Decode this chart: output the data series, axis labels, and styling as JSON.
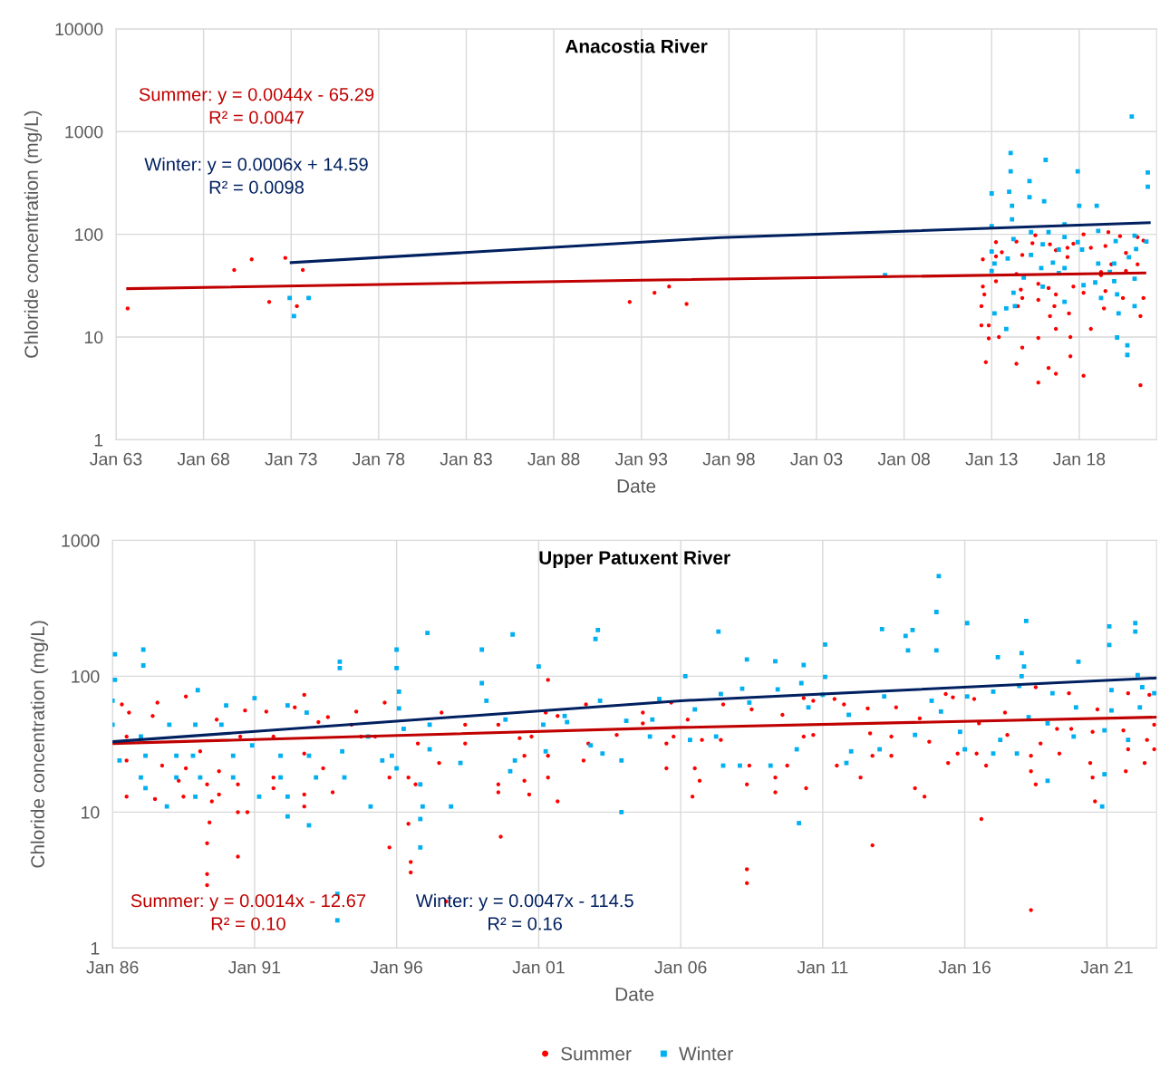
{
  "chart_data": [
    {
      "type": "scatter",
      "title": "Anacostia River",
      "xlabel": "Date",
      "ylabel": "Chloride concentration (mg/L)",
      "log": "y",
      "grid": true,
      "xlim": [
        "1963-01",
        "2022-06"
      ],
      "xticks": [
        {
          "value": "1963-01",
          "label": "Jan 63"
        },
        {
          "value": "1968-01",
          "label": "Jan 68"
        },
        {
          "value": "1973-01",
          "label": "Jan 73"
        },
        {
          "value": "1978-01",
          "label": "Jan 78"
        },
        {
          "value": "1983-01",
          "label": "Jan 83"
        },
        {
          "value": "1988-01",
          "label": "Jan 88"
        },
        {
          "value": "1993-01",
          "label": "Jan 93"
        },
        {
          "value": "1998-01",
          "label": "Jan 98"
        },
        {
          "value": "2003-01",
          "label": "Jan 03"
        },
        {
          "value": "2008-01",
          "label": "Jan 08"
        },
        {
          "value": "2013-01",
          "label": "Jan 13"
        },
        {
          "value": "2018-01",
          "label": "Jan 18"
        }
      ],
      "ylim": [
        1,
        10000
      ],
      "yticks": [
        1,
        10,
        100,
        1000,
        10000
      ],
      "annotations": [
        "Summer: y = 0.0044x - 65.29\nR² = 0.0047",
        "Winter: y = 0.0006x + 14.59\nR² = 0.0098"
      ],
      "series": [
        {
          "marker": "circle",
          "color": "#ff0000",
          "x": [
            "1963-09",
            "1969-10",
            "1970-10",
            "1971-10",
            "1972-09",
            "1973-05",
            "1973-09",
            "1992-05",
            "1993-10",
            "1994-08",
            "1995-08",
            "2013-04",
            "2012-07",
            "2013-04",
            "2013-08",
            "2014-06",
            "2014-10",
            "2015-05",
            "2015-07",
            "2016-05",
            "2016-09",
            "2017-05",
            "2017-09",
            "2018-04",
            "2018-09",
            "2019-07",
            "2019-09",
            "2020-05",
            "2020-09",
            "2021-05",
            "2021-05",
            "2021-09",
            "2013-04",
            "2014-06",
            "2014-09",
            "2014-10",
            "2014-07",
            "2015-09",
            "2016-04",
            "2016-09",
            "2017-09",
            "2018-04",
            "2019-04",
            "2019-07",
            "2020-09",
            "2020-07",
            "2021-09",
            "2012-07",
            "2012-08",
            "2012-06",
            "2012-06",
            "2012-11",
            "2013-06",
            "2012-11",
            "2015-09",
            "2016-08",
            "2016-05",
            "2017-06",
            "2016-09",
            "2017-07",
            "2018-09",
            "2019-06",
            "2021-07",
            "2014-10",
            "2012-09",
            "2014-06",
            "2015-09",
            "2017-07",
            "2016-04",
            "2016-09",
            "2018-04",
            "2015-09",
            "2021-07",
            "2019-11",
            "2019-04",
            "2017-05"
          ],
          "values": [
            19,
            45,
            57,
            22,
            59,
            20,
            45,
            22,
            27,
            31,
            21,
            84,
            57,
            61,
            67,
            85,
            63,
            82,
            98,
            80,
            70,
            74,
            81,
            100,
            74,
            77,
            105,
            96,
            66,
            94,
            51,
            87,
            35,
            41,
            29,
            24,
            20,
            33,
            30,
            26,
            31,
            27,
            40,
            28,
            44,
            24,
            24,
            31,
            26,
            20,
            13,
            13,
            10,
            9.7,
            23,
            20,
            16,
            17,
            12,
            10,
            12,
            19,
            16,
            7.9,
            5.7,
            5.5,
            9.8,
            6.5,
            5.0,
            4.4,
            4.2,
            3.6,
            3.4,
            51,
            43,
            60
          ]
        },
        {
          "marker": "square",
          "color": "#00b0f0",
          "x": [
            "1972-12",
            "1973-03",
            "1974-01",
            "2006-12",
            "2021-01",
            "2014-02",
            "2014-02",
            "2016-02",
            "2015-03",
            "2014-01",
            "2013-01",
            "2014-03",
            "2015-03",
            "2016-01",
            "2017-12",
            "2018-01",
            "2019-01",
            "2021-12",
            "2021-12",
            "2013-01",
            "2014-03",
            "2015-04",
            "2017-03",
            "2019-02",
            "2014-04",
            "2016-04",
            "2017-03",
            "2015-12",
            "2016-11",
            "2017-12",
            "2018-03",
            "2020-02",
            "2021-03",
            "2021-04",
            "2021-11",
            "2013-01",
            "2013-03",
            "2013-01",
            "2013-12",
            "2015-04",
            "2016-07",
            "2017-03",
            "2019-02",
            "2020-01",
            "2020-11",
            "2014-11",
            "2015-11",
            "2016-11",
            "2019-10",
            "2021-03",
            "2014-04",
            "2014-05",
            "2015-12",
            "2017-03",
            "2018-04",
            "2018-12",
            "2019-04",
            "2020-01",
            "2020-03",
            "2020-04",
            "2021-03",
            "2013-11",
            "2013-03",
            "2013-11",
            "2020-03",
            "2020-10",
            "2020-10"
          ],
          "values": [
            24,
            16,
            24,
            40,
            1400,
            620,
            410,
            530,
            330,
            260,
            250,
            190,
            230,
            210,
            410,
            190,
            190,
            400,
            290,
            120,
            140,
            105,
            125,
            108,
            90,
            105,
            94,
            80,
            71,
            84,
            71,
            86,
            97,
            72,
            85,
            68,
            52,
            44,
            58,
            63,
            53,
            47,
            52,
            52,
            60,
            38,
            47,
            42,
            43,
            37,
            27,
            20,
            31,
            22,
            32,
            34,
            24,
            35,
            26,
            17,
            20,
            19,
            17,
            12,
            9.9,
            8.3,
            6.7
          ]
        },
        {
          "type": "line",
          "color": "#c00000",
          "x": [
            "1963-09",
            "1993-01",
            "2021-10"
          ],
          "values": [
            29.6,
            35.8,
            42
          ]
        },
        {
          "type": "line",
          "color": "#002060",
          "x": [
            "1973-01",
            "1997-07",
            "2022-01"
          ],
          "values": [
            53,
            93,
            130
          ]
        }
      ]
    },
    {
      "type": "scatter",
      "title": "Upper Patuxent River",
      "xlabel": "Date",
      "ylabel": "Chloride concentration (mg/L)",
      "log": "y",
      "grid": true,
      "legend": "bottom",
      "xlim": [
        "1986-01",
        "2022-10"
      ],
      "xticks": [
        {
          "value": "1986-01",
          "label": "Jan 86"
        },
        {
          "value": "1991-01",
          "label": "Jan 91"
        },
        {
          "value": "1996-01",
          "label": "Jan 96"
        },
        {
          "value": "2001-01",
          "label": "Jan 01"
        },
        {
          "value": "2006-01",
          "label": "Jan 06"
        },
        {
          "value": "2011-01",
          "label": "Jan 11"
        },
        {
          "value": "2016-01",
          "label": "Jan 16"
        },
        {
          "value": "2021-01",
          "label": "Jan 21"
        }
      ],
      "ylim": [
        1,
        1000
      ],
      "yticks": [
        1,
        10,
        100,
        1000
      ],
      "annotations": [
        "Summer: y = 0.0014x - 12.67\nR² = 0.10",
        "Winter: y = 0.0047x - 114.5\nR² = 0.16"
      ],
      "series": [
        {
          "name": "Summer",
          "marker": "circle",
          "color": "#ff0000",
          "x": [
            "1986-05",
            "1986-08",
            "1986-07",
            "1986-07",
            "1986-07",
            "1987-06",
            "1987-07",
            "1987-08",
            "1987-10",
            "1988-05",
            "1988-07",
            "1988-08",
            "1988-08",
            "1989-02",
            "1989-05",
            "1989-05",
            "1989-05",
            "1989-05",
            "1989-07",
            "1989-06",
            "1989-10",
            "1989-10",
            "1989-09",
            "1990-06",
            "1990-06",
            "1990-06",
            "1990-07",
            "1990-09",
            "1990-10",
            "1991-06",
            "1991-09",
            "1991-09",
            "1991-09",
            "1992-10",
            "1992-06",
            "1992-10",
            "1992-10",
            "1992-10",
            "1993-04",
            "1993-06",
            "1993-10",
            "1993-08",
            "1994-06",
            "1994-08",
            "1994-10",
            "1995-04",
            "1995-08",
            "1995-10",
            "1995-10",
            "1996-06",
            "1996-06",
            "1996-07",
            "1996-07",
            "1996-09",
            "1996-10",
            "1997-08",
            "1997-07",
            "1997-10",
            "1998-06",
            "1998-06",
            "2001-05",
            "1999-08",
            "1999-08",
            "1999-08",
            "1999-09",
            "2000-07",
            "2000-07",
            "2000-09",
            "2000-10",
            "2000-05",
            "2001-05",
            "2001-05",
            "2001-04",
            "2001-09",
            "2001-09",
            "2002-08",
            "2002-09",
            "2002-10",
            "2003-10",
            "2004-09",
            "2004-09",
            "2005-07",
            "2005-07",
            "2005-09",
            "2005-10",
            "2006-04",
            "2006-07",
            "2006-06",
            "2006-09",
            "2006-10",
            "2007-07",
            "2007-06",
            "2008-05",
            "2008-05",
            "2008-05",
            "2008-06",
            "2008-07",
            "2009-05",
            "2009-05",
            "2009-08",
            "2009-10",
            "2010-05",
            "2010-06",
            "2010-05",
            "2010-09",
            "2010-09",
            "2011-06",
            "2011-07",
            "2011-10",
            "2012-05",
            "2012-08",
            "2012-09",
            "2012-10",
            "2012-10",
            "2013-06",
            "2013-06",
            "2013-08",
            "2014-04",
            "2014-08",
            "2014-06",
            "2014-10",
            "2015-05",
            "2015-06",
            "2015-10",
            "2015-08",
            "2016-06",
            "2016-08",
            "2016-10",
            "2016-07",
            "2016-05",
            "2017-07",
            "2017-06",
            "2018-05",
            "2018-05",
            "2018-07",
            "2018-05",
            "2018-07",
            "2018-09",
            "2019-05",
            "2019-04",
            "2019-09",
            "2019-10",
            "2020-06",
            "2020-07",
            "2020-08",
            "2020-07",
            "2020-09",
            "2021-08",
            "2021-09",
            "2021-10",
            "2021-10",
            "2022-05",
            "2022-06",
            "2022-07",
            "2022-09",
            "2022-09"
          ],
          "values": [
            62,
            54,
            36,
            24,
            13,
            51,
            12.5,
            64,
            22,
            17,
            13,
            71,
            21,
            28,
            16,
            5.9,
            3.5,
            2.9,
            12,
            8.4,
            13.5,
            20,
            48,
            4.7,
            10,
            16,
            36,
            56,
            10,
            55,
            36,
            18,
            15,
            73,
            59,
            27,
            13.5,
            11,
            46,
            21,
            14,
            50,
            44,
            55,
            36,
            36,
            64,
            18,
            5.5,
            18,
            8.2,
            4.3,
            3.6,
            16,
            32,
            54,
            23,
            2.2,
            44,
            32,
            94,
            44,
            16,
            14,
            6.6,
            26,
            17,
            13.5,
            36,
            35,
            26,
            18,
            54,
            12,
            51,
            24,
            62,
            32,
            37,
            54,
            45,
            32,
            21,
            64,
            36,
            48,
            21,
            13,
            17,
            34,
            62,
            34,
            3.8,
            3.0,
            16,
            22,
            57,
            14,
            18,
            52,
            22,
            69,
            15,
            36,
            66,
            37,
            68,
            22,
            62,
            18,
            58,
            38,
            26,
            5.7,
            26,
            36,
            59,
            15,
            13,
            49,
            33,
            74,
            23,
            27,
            70,
            27,
            8.9,
            22,
            45,
            68,
            37,
            54,
            26,
            20,
            16,
            1.9,
            83,
            32,
            27,
            41,
            75,
            41,
            23,
            18,
            12,
            39,
            57,
            40,
            20,
            75,
            29,
            23,
            34,
            73,
            29,
            44
          ]
        },
        {
          "name": "Winter",
          "marker": "square",
          "color": "#00b0f0",
          "x": [
            "1986-02",
            "1986-02",
            "1986-01",
            "1986-01",
            "1986-04",
            "1987-02",
            "1987-02",
            "1987-01",
            "1987-01",
            "1987-03",
            "1987-03",
            "1987-12",
            "1988-01",
            "1988-04",
            "1988-04",
            "1989-01",
            "1988-12",
            "1988-11",
            "1988-12",
            "1989-02",
            "1990-01",
            "1989-11",
            "1990-04",
            "1990-04",
            "1991-01",
            "1990-12",
            "1991-03",
            "1991-12",
            "1991-12",
            "1992-03",
            "1992-03",
            "1992-03",
            "1992-11",
            "1992-12",
            "1992-12",
            "1993-03",
            "1994-01",
            "1994-01",
            "1993-12",
            "1993-12",
            "1994-02",
            "1994-03",
            "1995-01",
            "1995-02",
            "1995-07",
            "1995-11",
            "1996-01",
            "1996-01",
            "1996-02",
            "1996-02",
            "1996-04",
            "1996-01",
            "1996-11",
            "1996-12",
            "1996-11",
            "1996-11",
            "1997-02",
            "1997-03",
            "1997-03",
            "1997-12",
            "1998-04",
            "1999-01",
            "1999-01",
            "1999-03",
            "2000-02",
            "2000-03",
            "2000-01",
            "1999-11",
            "2001-01",
            "2001-03",
            "2001-04",
            "2001-12",
            "2002-01",
            "2002-11",
            "2003-02",
            "2003-01",
            "2003-03",
            "2003-04",
            "2003-12",
            "2003-12",
            "2004-02",
            "2004-12",
            "2005-04",
            "2005-01",
            "2006-03",
            "2006-05",
            "2006-07",
            "2007-04",
            "2007-05",
            "2007-07",
            "2007-06",
            "2008-03",
            "2008-05",
            "2008-02",
            "2008-06",
            "2009-03",
            "2009-05",
            "2009-06",
            "2010-02",
            "2010-03",
            "2010-05",
            "2010-04",
            "2010-07",
            "2011-02",
            "2011-02",
            "2011-01",
            "2011-11",
            "2012-01",
            "2011-12",
            "2013-02",
            "2013-12",
            "2014-03",
            "2014-01",
            "2013-03",
            "2013-01",
            "2014-04",
            "2015-02",
            "2015-01",
            "2015-01",
            "2014-11",
            "2015-03",
            "2016-02",
            "2015-11",
            "2016-01",
            "2016-02",
            "2017-01",
            "2017-03",
            "2017-04",
            "2017-01",
            "2017-11",
            "2018-03",
            "2018-01",
            "2018-02",
            "2018-01",
            "2017-12",
            "2018-04",
            "2018-12",
            "2018-12",
            "2019-02",
            "2020-01",
            "2019-12",
            "2019-11",
            "2020-12",
            "2020-11",
            "2021-02",
            "2021-02",
            "2021-03",
            "2021-03",
            "2020-12",
            "2021-10",
            "2022-01",
            "2022-01",
            "2022-02",
            "2022-04",
            "2022-03",
            "2022-09"
          ],
          "values": [
            145,
            94,
            66,
            44,
            24,
            157,
            120,
            36,
            18,
            15,
            26,
            11,
            44,
            26,
            18,
            79,
            44,
            26,
            13,
            18,
            61,
            44,
            26,
            18,
            69,
            31,
            13,
            26,
            18,
            61,
            13,
            9.3,
            54,
            26,
            8,
            18,
            128,
            115,
            2.5,
            1.6,
            28,
            18,
            36,
            11,
            24,
            26,
            157,
            115,
            77,
            58,
            41,
            21,
            16,
            11,
            8.9,
            5.5,
            208,
            44,
            29,
            11,
            23,
            157,
            89,
            66,
            203,
            24,
            20,
            48,
            118,
            44,
            28,
            51,
            46,
            31,
            219,
            188,
            66,
            27,
            24,
            10,
            47,
            36,
            68,
            48,
            100,
            34,
            57,
            36,
            213,
            22,
            74,
            81,
            133,
            22,
            64,
            22,
            129,
            80,
            29,
            8.3,
            121,
            89,
            59,
            171,
            99,
            73,
            23,
            28,
            52,
            222,
            198,
            219,
            155,
            71,
            29,
            37,
            545,
            297,
            155,
            66,
            55,
            246,
            39,
            29,
            71,
            77,
            138,
            34,
            27,
            27,
            255,
            148,
            118,
            100,
            85,
            50,
            17,
            45,
            75,
            128,
            59,
            36,
            19,
            11,
            233,
            170,
            79,
            56,
            40,
            34,
            246,
            213,
            102,
            83,
            59,
            75
          ]
        },
        {
          "type": "line",
          "color": "#c00000",
          "x": [
            "1986-01",
            "2006-01",
            "2022-10"
          ],
          "values": [
            32,
            42,
            50
          ]
        },
        {
          "type": "line",
          "color": "#002060",
          "x": [
            "1986-01",
            "2006-01",
            "2022-10"
          ],
          "values": [
            33,
            66,
            97
          ]
        }
      ]
    }
  ]
}
